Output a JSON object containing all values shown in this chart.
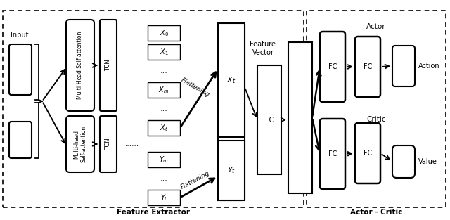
{
  "fig_width": 6.4,
  "fig_height": 3.13,
  "dpi": 100,
  "bg_color": "#ffffff",
  "fe_label": "Feature Extractor",
  "ac_label": "Actor - Critic",
  "input_label": "Input",
  "feature_vector_label": "Feature\nVector",
  "actor_label": "Actor",
  "critic_label": "Critic",
  "action_label": "Action",
  "value_label": "Value",
  "fc_label": "FC",
  "tcn_label": "TCN",
  "mhsa_top_label": "Multi-Head Self-attention",
  "mhsa_bot_label": "Multi-head\nSelf-attention",
  "dots": "......",
  "flat_label": "Flattening"
}
